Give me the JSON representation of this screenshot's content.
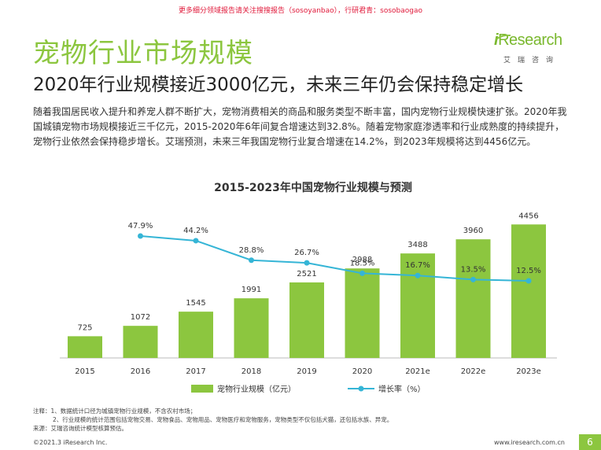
{
  "banner": "更多细分领域报告请关注搜搜报告（sosoyanbao），行研君青：sosobaogao",
  "page_title": "宠物行业市场规模",
  "logo": {
    "brand_i": "i",
    "brand_rest": "Research",
    "sub": "艾瑞咨询"
  },
  "subtitle": "2020年行业规模接近3000亿元，未来三年仍会保持稳定增长",
  "description": "随着我国居民收入提升和养宠人群不断扩大，宠物消费相关的商品和服务类型不断丰富，国内宠物行业规模快速扩张。2020年我国城镇宠物市场规模接近三千亿元，2015-2020年6年间复合增速达到32.8%。随着宠物家庭渗透率和行业成熟度的持续提升，宠物行业依然会保持稳步增长。艾瑞预测，未来三年我国宠物行业复合增速在14.2%，到2023年规模将达到4456亿元。",
  "chart_data": {
    "type": "bar+line",
    "title": "2015-2023年中国宠物行业规模与预测",
    "categories": [
      "2015",
      "2016",
      "2017",
      "2018",
      "2019",
      "2020",
      "2021e",
      "2022e",
      "2023e"
    ],
    "series": [
      {
        "name": "宠物行业规模（亿元）",
        "type": "bar",
        "color": "#8cc63f",
        "values": [
          725,
          1072,
          1545,
          1991,
          2521,
          2988,
          3488,
          3960,
          4456
        ],
        "labels": [
          "725",
          "1072",
          "1545",
          "1991",
          "2521",
          "2988",
          "3488",
          "3960",
          "4456"
        ]
      },
      {
        "name": "增长率（%）",
        "type": "line",
        "color": "#35b5d6",
        "values": [
          null,
          47.9,
          44.2,
          28.8,
          26.7,
          18.5,
          16.7,
          13.5,
          12.5
        ],
        "labels": [
          "",
          "47.9%",
          "44.2%",
          "28.8%",
          "26.7%",
          "18.5%",
          "16.7%",
          "13.5%",
          "12.5%"
        ]
      }
    ],
    "bar_ylim": [
      0,
      4700
    ],
    "line_ylim": [
      0,
      80
    ],
    "legend_position": "bottom",
    "grid": false
  },
  "notes": [
    "注释：1、数据统计口径为城镇宠物行业规模，不含农村市场；",
    "2、行业规模的统计范围包括宠物交易、宠物食品、宠物用品、宠物医疗和宠物服务，宠物类型不仅包括犬猫，还包括水族、异宠。",
    "来源：艾瑞咨询统计模型核算预估。"
  ],
  "footer": {
    "copyright": "©2021.3 iResearch Inc.",
    "url": "www.iresearch.com.cn",
    "page": "6"
  },
  "colors": {
    "accent": "#8cc63f",
    "line": "#35b5d6",
    "banner": "#e0193a"
  }
}
